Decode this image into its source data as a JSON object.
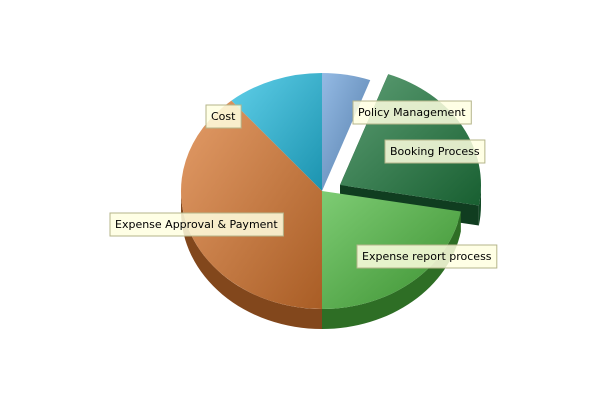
{
  "chart_data": {
    "type": "pie",
    "title": "",
    "slices": [
      {
        "label": "Policy Management",
        "value": 0.0556,
        "color": "#6a9fd9",
        "exploded": false
      },
      {
        "label": "Booking Process",
        "value": 0.2222,
        "color": "#1f7a3f",
        "exploded": true
      },
      {
        "label": "Expense report process",
        "value": 0.2222,
        "color": "#4cb83e",
        "exploded": false
      },
      {
        "label": "Expense Approval & Payment",
        "value": 0.3889,
        "color": "#d9772f",
        "exploded": false
      },
      {
        "label": "Cost",
        "value": 0.1111,
        "color": "#22bde0",
        "exploded": false
      }
    ]
  }
}
